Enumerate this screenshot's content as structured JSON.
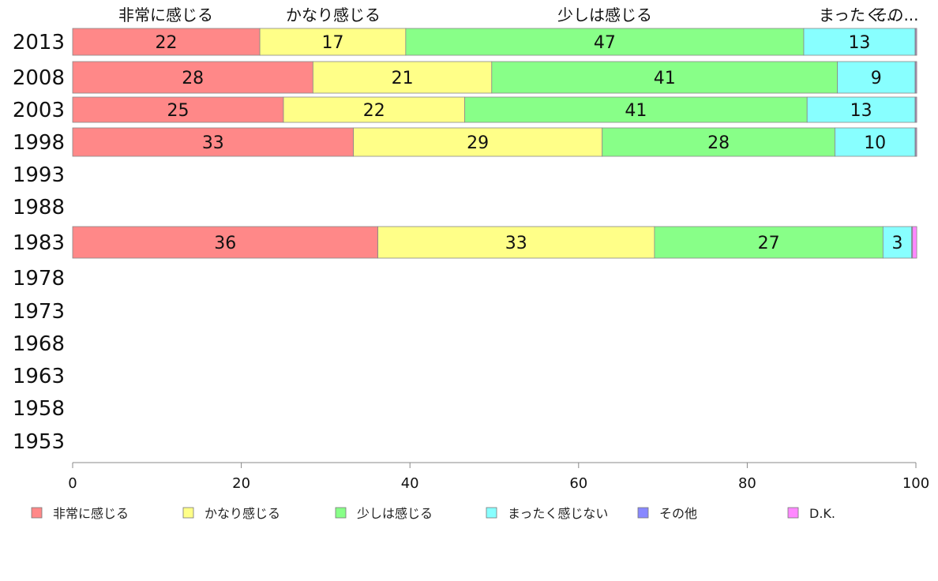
{
  "chart_data": {
    "type": "bar",
    "orientation": "horizontal",
    "stacked": true,
    "categories": [
      "2013",
      "2008",
      "2003",
      "1998",
      "1993",
      "1988",
      "1983",
      "1978",
      "1973",
      "1968",
      "1963",
      "1958",
      "1953"
    ],
    "series": [
      {
        "name": "非常に感じる",
        "color": "#FF8888",
        "values": [
          22.2,
          28.5,
          25.0,
          33.3,
          null,
          null,
          36.2,
          null,
          null,
          null,
          null,
          null,
          null
        ]
      },
      {
        "name": "かなり感じる",
        "color": "#FFFF88",
        "values": [
          17.3,
          21.2,
          21.5,
          29.5,
          null,
          null,
          32.8,
          null,
          null,
          null,
          null,
          null,
          null
        ]
      },
      {
        "name": "少しは感じる",
        "color": "#88FF88",
        "values": [
          47.2,
          41.0,
          40.6,
          27.6,
          null,
          null,
          27.1,
          null,
          null,
          null,
          null,
          null,
          null
        ]
      },
      {
        "name": "まったく感じない",
        "color": "#88FFFF",
        "values": [
          13.2,
          9.2,
          12.8,
          9.5,
          null,
          null,
          3.4,
          null,
          null,
          null,
          null,
          null,
          null
        ]
      },
      {
        "name": "その他",
        "color": "#8888FF",
        "values": [
          0.1,
          0.1,
          0.1,
          0.1,
          null,
          null,
          0.1,
          null,
          null,
          null,
          null,
          null,
          null
        ]
      },
      {
        "name": "D.K.",
        "color": "#FF88FF",
        "values": [
          0.1,
          0.1,
          0.1,
          0.1,
          null,
          null,
          0.5,
          null,
          null,
          null,
          null,
          null,
          null
        ]
      }
    ],
    "data_labels": [
      [
        "22",
        "17",
        "47",
        "13",
        "",
        ""
      ],
      [
        "28",
        "21",
        "41",
        "9",
        "",
        ""
      ],
      [
        "25",
        "22",
        "41",
        "13",
        "",
        ""
      ],
      [
        "33",
        "29",
        "28",
        "10",
        "",
        ""
      ],
      null,
      null,
      [
        "36",
        "33",
        "27",
        "3",
        "",
        ""
      ],
      null,
      null,
      null,
      null,
      null,
      null
    ],
    "top_labels": [
      "非常に感じる",
      "かなり感じる",
      "少しは感じる",
      "まったく...",
      "その..."
    ],
    "xlim": [
      0,
      100
    ],
    "xticks": [
      "0",
      "20",
      "40",
      "60",
      "80",
      "100"
    ],
    "grid": false,
    "legend_position": "bottom"
  }
}
